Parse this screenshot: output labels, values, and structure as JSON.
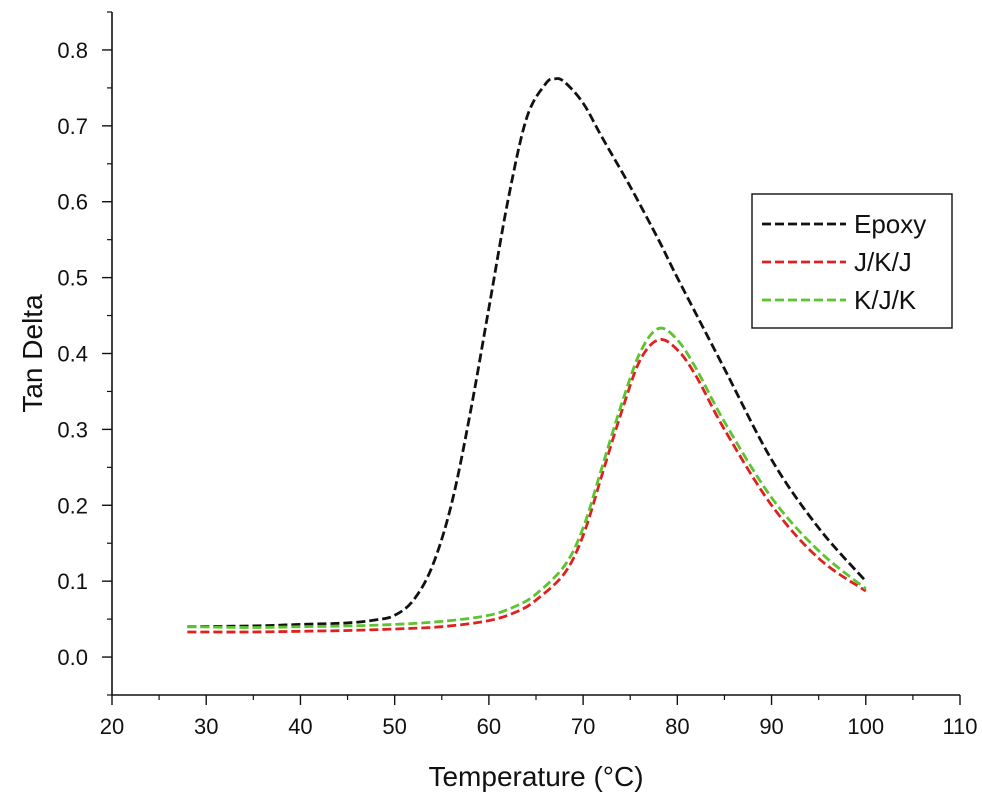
{
  "chart_data": {
    "type": "line",
    "title": "",
    "xlabel": "Temperature (°C)",
    "ylabel": "Tan Delta",
    "xlim": [
      20,
      110
    ],
    "ylim": [
      -0.05,
      0.85
    ],
    "xticks": [
      20,
      30,
      40,
      50,
      60,
      70,
      80,
      90,
      100,
      110
    ],
    "xtick_labels": [
      "20",
      "30",
      "40",
      "50",
      "60",
      "70",
      "80",
      "90",
      "100",
      "110"
    ],
    "yticks": [
      0.0,
      0.1,
      0.2,
      0.3,
      0.4,
      0.5,
      0.6,
      0.7,
      0.8
    ],
    "ytick_labels": [
      "0.0",
      "0.1",
      "0.2",
      "0.3",
      "0.4",
      "0.5",
      "0.6",
      "0.7",
      "0.8"
    ],
    "grid": false,
    "legend_position": "right",
    "series": [
      {
        "name": "Epoxy",
        "color": "#111111",
        "x": [
          28,
          35,
          40,
          45,
          48,
          50,
          52,
          54,
          56,
          58,
          60,
          62,
          64,
          66,
          67,
          68,
          70,
          72,
          75,
          78,
          80,
          85,
          90,
          95,
          100
        ],
        "y": [
          0.04,
          0.041,
          0.043,
          0.045,
          0.049,
          0.055,
          0.075,
          0.12,
          0.2,
          0.32,
          0.46,
          0.6,
          0.71,
          0.755,
          0.762,
          0.758,
          0.73,
          0.685,
          0.62,
          0.55,
          0.5,
          0.38,
          0.26,
          0.17,
          0.1
        ]
      },
      {
        "name": "J/K/J",
        "color": "#e02020",
        "x": [
          28,
          35,
          40,
          45,
          50,
          55,
          60,
          63,
          65,
          68,
          70,
          72,
          74,
          76,
          78,
          80,
          82,
          85,
          90,
          95,
          100
        ],
        "y": [
          0.033,
          0.033,
          0.034,
          0.035,
          0.037,
          0.04,
          0.048,
          0.06,
          0.075,
          0.11,
          0.16,
          0.24,
          0.32,
          0.39,
          0.418,
          0.405,
          0.37,
          0.3,
          0.2,
          0.13,
          0.087
        ]
      },
      {
        "name": "K/J/K",
        "color": "#5cc42e",
        "x": [
          28,
          35,
          40,
          45,
          50,
          55,
          60,
          63,
          65,
          68,
          70,
          72,
          74,
          76,
          78,
          80,
          82,
          85,
          90,
          95,
          100
        ],
        "y": [
          0.04,
          0.039,
          0.04,
          0.041,
          0.043,
          0.047,
          0.055,
          0.068,
          0.083,
          0.12,
          0.17,
          0.25,
          0.33,
          0.4,
          0.433,
          0.418,
          0.38,
          0.31,
          0.21,
          0.14,
          0.09
        ]
      }
    ]
  }
}
